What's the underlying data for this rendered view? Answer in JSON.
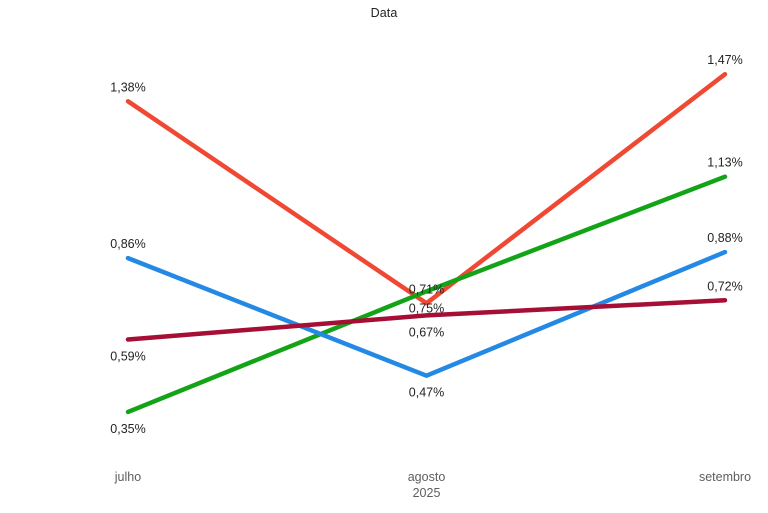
{
  "chart_data": {
    "type": "line",
    "title": "Data",
    "categories": [
      "julho",
      "agosto",
      "setembro"
    ],
    "x_axis_sublabel": "2025",
    "x_axis_sublabel_category": "agosto",
    "ylabel": "",
    "xlabel": "",
    "ylim": [
      0.25,
      1.6
    ],
    "grid": false,
    "legend_position": "none",
    "value_format": "0,00%",
    "text_color": "#252423",
    "axis_label_color": "#605E5C",
    "background_color": "#FFFFFF",
    "series": [
      {
        "id": "red",
        "color": "#EF4934",
        "values": [
          1.38,
          0.71,
          1.47
        ],
        "labels": [
          "1,38%",
          "0,71%",
          "1,47%"
        ],
        "label_pos": [
          "above",
          "above",
          "above"
        ]
      },
      {
        "id": "green",
        "color": "#13A317",
        "values": [
          0.35,
          0.75,
          1.13
        ],
        "labels": [
          "0,35%",
          "0,75%",
          "1,13%"
        ],
        "label_pos": [
          "below",
          "below",
          "above"
        ]
      },
      {
        "id": "blue",
        "color": "#2389E5",
        "values": [
          0.86,
          0.47,
          0.88
        ],
        "labels": [
          "0,86%",
          "0,47%",
          "0,88%"
        ],
        "label_pos": [
          "above",
          "below",
          "above"
        ]
      },
      {
        "id": "dark-red",
        "color": "#A50E35",
        "values": [
          0.59,
          0.67,
          0.72
        ],
        "labels": [
          "0,59%",
          "0,67%",
          "0,72%"
        ],
        "label_pos": [
          "below",
          "below",
          "above"
        ]
      }
    ]
  }
}
